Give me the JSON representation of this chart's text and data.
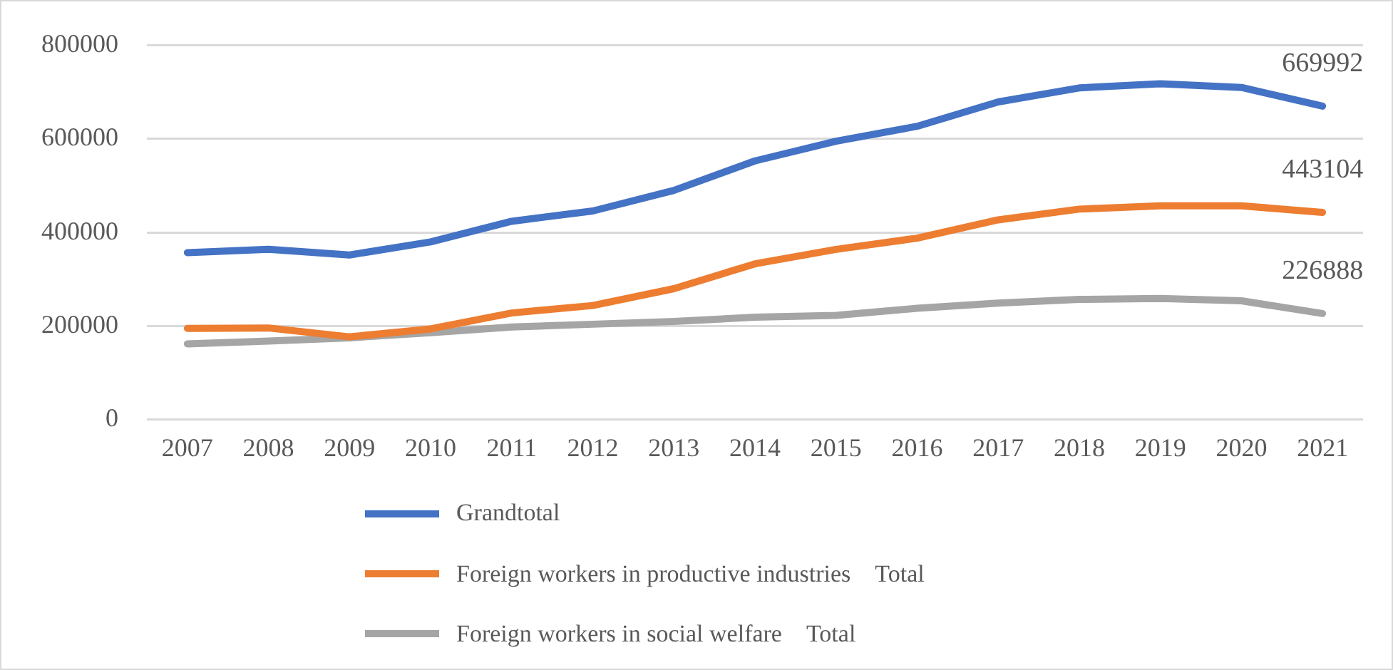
{
  "chart_data": {
    "type": "line",
    "categories": [
      "2007",
      "2008",
      "2009",
      "2010",
      "2011",
      "2012",
      "2013",
      "2014",
      "2015",
      "2016",
      "2017",
      "2018",
      "2019",
      "2020",
      "2021"
    ],
    "series": [
      {
        "name": "Grandtotal",
        "color": "#4472c4",
        "values": [
          357000,
          364000,
          352000,
          380000,
          424000,
          446000,
          490000,
          553000,
          595000,
          627000,
          679000,
          709000,
          718000,
          710000,
          669992
        ],
        "value_labels": [
          null,
          null,
          null,
          null,
          null,
          null,
          null,
          null,
          null,
          null,
          null,
          null,
          null,
          null,
          "669992"
        ]
      },
      {
        "name": "Foreign workers in productive industries　Total",
        "color": "#ed7d31",
        "values": [
          195000,
          196000,
          177000,
          194000,
          228000,
          244000,
          280000,
          333000,
          364000,
          388000,
          427000,
          450000,
          457000,
          457000,
          443104
        ],
        "value_labels": [
          null,
          null,
          null,
          null,
          null,
          null,
          null,
          null,
          null,
          null,
          null,
          null,
          null,
          null,
          "443104"
        ]
      },
      {
        "name": "Foreign workers in social welfare　Total",
        "color": "#a5a5a5",
        "values": [
          162000,
          168000,
          175000,
          186000,
          198000,
          204000,
          210000,
          219000,
          223000,
          238000,
          249000,
          257000,
          259000,
          254000,
          226888
        ],
        "value_labels": [
          null,
          null,
          null,
          null,
          null,
          null,
          null,
          null,
          null,
          null,
          null,
          null,
          null,
          null,
          "226888"
        ]
      }
    ],
    "ylim": [
      0,
      800000
    ],
    "yticks": [
      0,
      200000,
      400000,
      600000,
      800000
    ],
    "grid": "y",
    "legend": "bottom",
    "marker": "none",
    "line_style": "solid"
  }
}
